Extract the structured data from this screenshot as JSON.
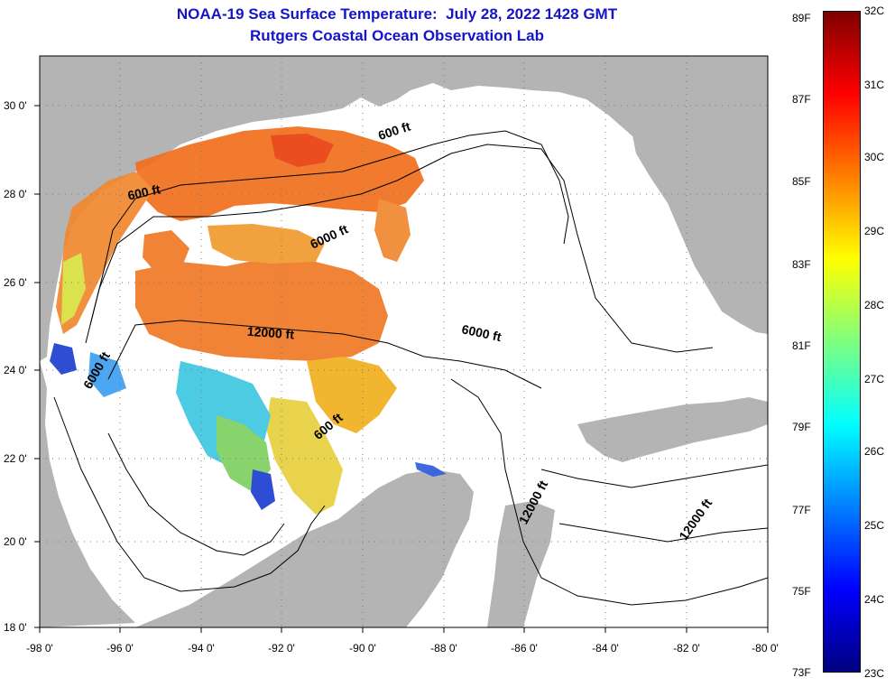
{
  "header": {
    "title": "NOAA-19 Sea Surface Temperature:  July 28, 2022 1428 GMT",
    "subtitle": "Rutgers Coastal Ocean Observation Lab"
  },
  "map": {
    "region": "Gulf of Mexico",
    "x_ticks": [
      "-98 0'",
      "-96 0'",
      "-94 0'",
      "-92 0'",
      "-90 0'",
      "-88 0'",
      "-86 0'",
      "-84 0'",
      "-82 0'",
      "-80 0'"
    ],
    "y_ticks": [
      "30 0'",
      "28 0'",
      "26 0'",
      "24 0'",
      "22 0'",
      "20 0'",
      "18 0'"
    ],
    "contour_labels": [
      {
        "text": "600 ft",
        "lon": -95.4,
        "lat": 27.8,
        "angle": -12
      },
      {
        "text": "600 ft",
        "lon": -89.2,
        "lat": 29.2,
        "angle": -18
      },
      {
        "text": "6000 ft",
        "lon": -90.8,
        "lat": 26.8,
        "angle": -25
      },
      {
        "text": "12000 ft",
        "lon": -92.3,
        "lat": 24.6,
        "angle": 4
      },
      {
        "text": "6000 ft",
        "lon": -87.1,
        "lat": 24.6,
        "angle": 12
      },
      {
        "text": "6000 ft",
        "lon": -96.5,
        "lat": 23.8,
        "angle": -60
      },
      {
        "text": "600 ft",
        "lon": -90.8,
        "lat": 22.5,
        "angle": -40
      },
      {
        "text": "12000 ft",
        "lon": -85.7,
        "lat": 20.8,
        "angle": -62
      },
      {
        "text": "12000 ft",
        "lon": -81.7,
        "lat": 20.4,
        "angle": -55
      }
    ],
    "land_color": "#b4b4b4",
    "water_color": "#ffffff"
  },
  "legend": {
    "fahrenheit": [
      "89F",
      "87F",
      "85F",
      "83F",
      "81F",
      "79F",
      "77F",
      "75F",
      "73F"
    ],
    "celsius": [
      "32C",
      "31C",
      "30C",
      "29C",
      "28C",
      "27C",
      "26C",
      "25C",
      "24C",
      "23C"
    ],
    "colors": [
      "#00007f",
      "#0000ff",
      "#007fff",
      "#00ffff",
      "#7fff7f",
      "#ffff00",
      "#ff7f00",
      "#ff0000",
      "#7f0000"
    ]
  }
}
